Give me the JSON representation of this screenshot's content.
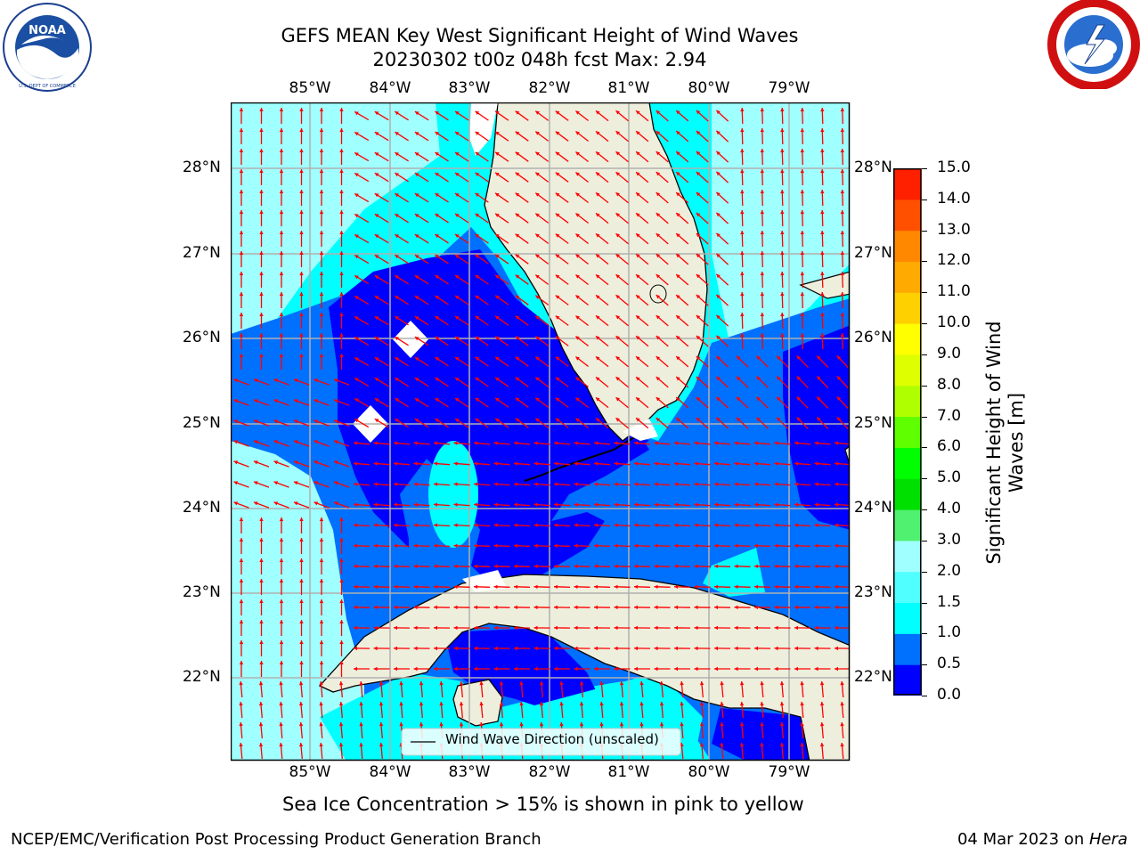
{
  "header": {
    "title_line1": "GEFS MEAN Key West Significant Height of Wind Waves",
    "title_line2": "20230302 t00z 048h fcst   Max: 2.94"
  },
  "logos": {
    "left": {
      "name": "NOAA",
      "ring_text": "NATIONAL OCEANIC AND ATMOSPHERIC ADMINISTRATION · U.S. DEPARTMENT OF COMMERCE"
    },
    "right": {
      "name": "NATIONAL WEATHER SERVICE"
    }
  },
  "map": {
    "lon_labels": [
      "85°W",
      "84°W",
      "83°W",
      "82°W",
      "81°W",
      "80°W",
      "79°W"
    ],
    "lat_labels": [
      "28°N",
      "27°N",
      "26°N",
      "25°N",
      "24°N",
      "23°N",
      "22°N"
    ],
    "legend_label": "Wind Wave Direction (unscaled)",
    "land_color": "#eeeedd",
    "arrow_color": "#ff0000",
    "grid": true
  },
  "colorbar": {
    "title_line1": "Significant Height of Wind",
    "title_line2": "Waves [m]",
    "ticks": [
      "15.0",
      "14.0",
      "13.0",
      "12.0",
      "11.0",
      "10.0",
      "9.0",
      "8.0",
      "7.0",
      "6.0",
      "5.0",
      "4.0",
      "3.0",
      "2.0",
      "1.5",
      "1.0",
      "0.5",
      "0.0"
    ],
    "colors_bottom_to_top": [
      "#0000ff",
      "#0070ff",
      "#00ffff",
      "#50ffff",
      "#a0ffff",
      "#50f070",
      "#00e000",
      "#00ff00",
      "#60ff00",
      "#b0ff00",
      "#ddff00",
      "#ffff00",
      "#ffd000",
      "#ffaa00",
      "#ff8800",
      "#ff5000",
      "#ff2000"
    ]
  },
  "subtitle": "Sea Ice Concentration > 15% is shown in pink to yellow",
  "footer": {
    "left": "NCEP/EMC/Verification Post Processing Product Generation Branch",
    "right_date": "04 Mar 2023 on ",
    "right_host": "Hera"
  }
}
